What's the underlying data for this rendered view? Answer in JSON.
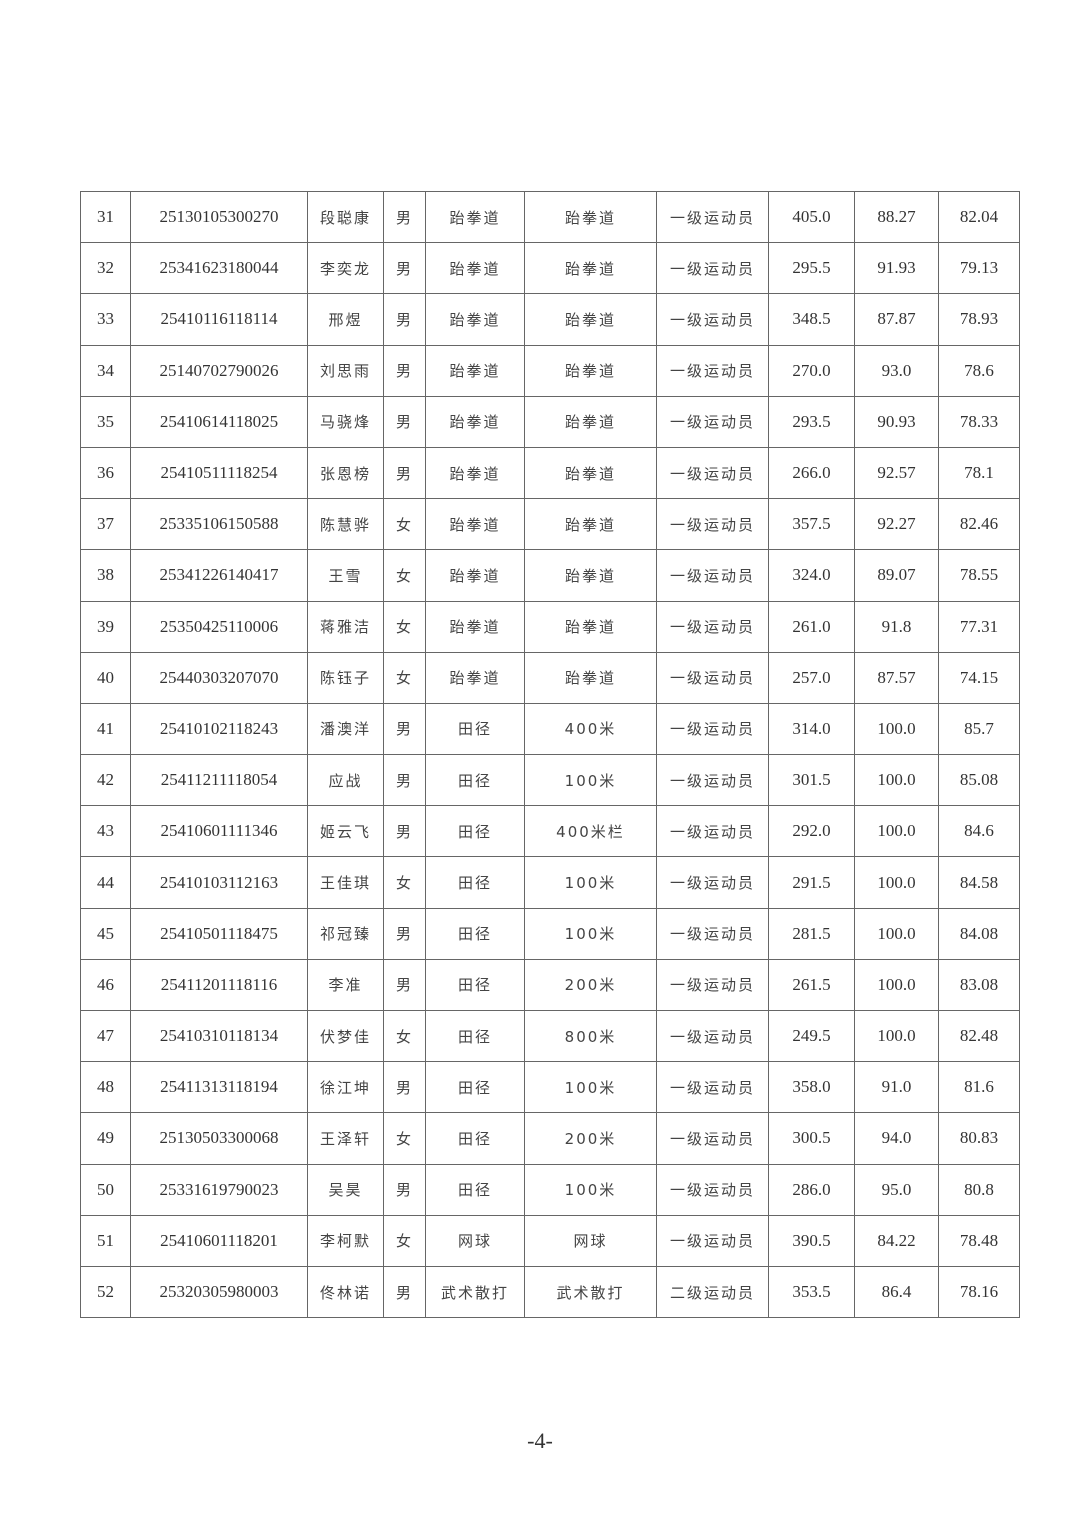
{
  "table": {
    "rows": [
      [
        "31",
        "25130105300270",
        "段聪康",
        "男",
        "跆拳道",
        "跆拳道",
        "一级运动员",
        "405.0",
        "88.27",
        "82.04"
      ],
      [
        "32",
        "25341623180044",
        "李奕龙",
        "男",
        "跆拳道",
        "跆拳道",
        "一级运动员",
        "295.5",
        "91.93",
        "79.13"
      ],
      [
        "33",
        "25410116118114",
        "邢煜",
        "男",
        "跆拳道",
        "跆拳道",
        "一级运动员",
        "348.5",
        "87.87",
        "78.93"
      ],
      [
        "34",
        "25140702790026",
        "刘思雨",
        "男",
        "跆拳道",
        "跆拳道",
        "一级运动员",
        "270.0",
        "93.0",
        "78.6"
      ],
      [
        "35",
        "25410614118025",
        "马骁烽",
        "男",
        "跆拳道",
        "跆拳道",
        "一级运动员",
        "293.5",
        "90.93",
        "78.33"
      ],
      [
        "36",
        "25410511118254",
        "张恩榜",
        "男",
        "跆拳道",
        "跆拳道",
        "一级运动员",
        "266.0",
        "92.57",
        "78.1"
      ],
      [
        "37",
        "25335106150588",
        "陈慧骅",
        "女",
        "跆拳道",
        "跆拳道",
        "一级运动员",
        "357.5",
        "92.27",
        "82.46"
      ],
      [
        "38",
        "25341226140417",
        "王雪",
        "女",
        "跆拳道",
        "跆拳道",
        "一级运动员",
        "324.0",
        "89.07",
        "78.55"
      ],
      [
        "39",
        "25350425110006",
        "蒋雅洁",
        "女",
        "跆拳道",
        "跆拳道",
        "一级运动员",
        "261.0",
        "91.8",
        "77.31"
      ],
      [
        "40",
        "25440303207070",
        "陈钰子",
        "女",
        "跆拳道",
        "跆拳道",
        "一级运动员",
        "257.0",
        "87.57",
        "74.15"
      ],
      [
        "41",
        "25410102118243",
        "潘澳洋",
        "男",
        "田径",
        "400米",
        "一级运动员",
        "314.0",
        "100.0",
        "85.7"
      ],
      [
        "42",
        "25411211118054",
        "应战",
        "男",
        "田径",
        "100米",
        "一级运动员",
        "301.5",
        "100.0",
        "85.08"
      ],
      [
        "43",
        "25410601111346",
        "姬云飞",
        "男",
        "田径",
        "400米栏",
        "一级运动员",
        "292.0",
        "100.0",
        "84.6"
      ],
      [
        "44",
        "25410103112163",
        "王佳琪",
        "女",
        "田径",
        "100米",
        "一级运动员",
        "291.5",
        "100.0",
        "84.58"
      ],
      [
        "45",
        "25410501118475",
        "祁冠臻",
        "男",
        "田径",
        "100米",
        "一级运动员",
        "281.5",
        "100.0",
        "84.08"
      ],
      [
        "46",
        "25411201118116",
        "李准",
        "男",
        "田径",
        "200米",
        "一级运动员",
        "261.5",
        "100.0",
        "83.08"
      ],
      [
        "47",
        "25410310118134",
        "伏梦佳",
        "女",
        "田径",
        "800米",
        "一级运动员",
        "249.5",
        "100.0",
        "82.48"
      ],
      [
        "48",
        "25411313118194",
        "徐江坤",
        "男",
        "田径",
        "100米",
        "一级运动员",
        "358.0",
        "91.0",
        "81.6"
      ],
      [
        "49",
        "25130503300068",
        "王泽轩",
        "女",
        "田径",
        "200米",
        "一级运动员",
        "300.5",
        "94.0",
        "80.83"
      ],
      [
        "50",
        "25331619790023",
        "吴昊",
        "男",
        "田径",
        "100米",
        "一级运动员",
        "286.0",
        "95.0",
        "80.8"
      ],
      [
        "51",
        "25410601118201",
        "李柯默",
        "女",
        "网球",
        "网球",
        "一级运动员",
        "390.5",
        "84.22",
        "78.48"
      ],
      [
        "52",
        "25320305980003",
        "佟林诺",
        "男",
        "武术散打",
        "武术散打",
        "二级运动员",
        "353.5",
        "86.4",
        "78.16"
      ]
    ]
  },
  "footer": {
    "page_number": "-4-"
  }
}
